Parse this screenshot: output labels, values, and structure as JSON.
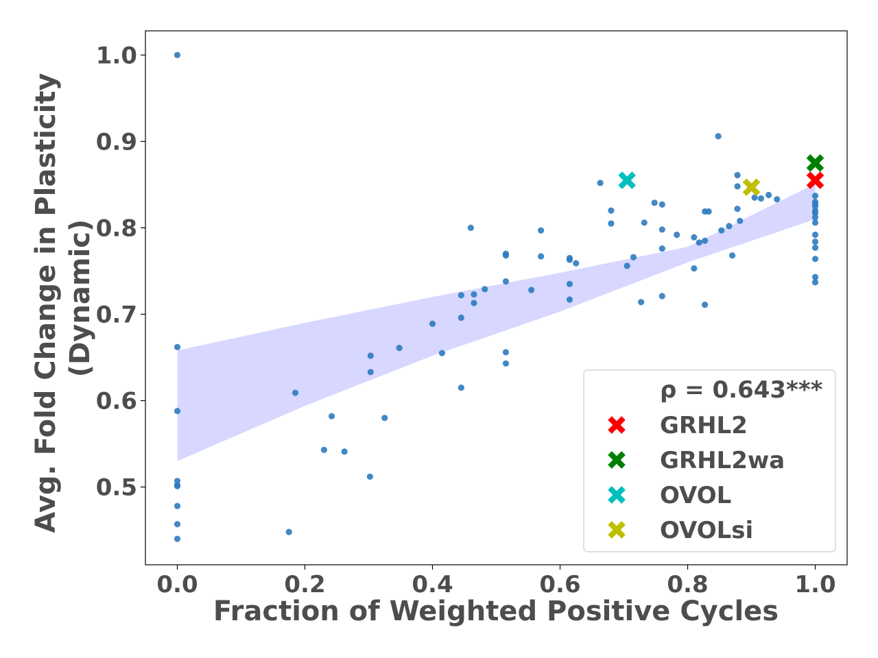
{
  "chart_data": {
    "type": "scatter",
    "xlabel": "Fraction of Weighted Positive Cycles",
    "ylabel_lines": [
      "Avg. Fold Change in Plasticity",
      "(Dynamic)"
    ],
    "xlim": [
      -0.05,
      1.05
    ],
    "ylim": [
      0.41,
      1.028
    ],
    "xticks": [
      0.0,
      0.2,
      0.4,
      0.6,
      0.8,
      1.0
    ],
    "yticks": [
      0.5,
      0.6,
      0.7,
      0.8,
      0.9,
      1.0
    ],
    "xtick_labels": [
      "0.0",
      "0.2",
      "0.4",
      "0.6",
      "0.8",
      "1.0"
    ],
    "ytick_labels": [
      "0.5",
      "0.6",
      "0.7",
      "0.8",
      "0.9",
      "1.0"
    ],
    "grid": false,
    "legend_position": "bottom-right",
    "point_color": "#2e7bbf",
    "band_color": "#c9c9ff",
    "regression_band": {
      "x": [
        0.0,
        0.2,
        0.4,
        0.6,
        0.8,
        1.0
      ],
      "lower": [
        0.53,
        0.594,
        0.652,
        0.703,
        0.76,
        0.81
      ],
      "upper": [
        0.658,
        0.69,
        0.72,
        0.748,
        0.778,
        0.851
      ]
    },
    "points": [
      [
        0.0,
        1.0
      ],
      [
        0.0,
        0.662
      ],
      [
        0.0,
        0.588
      ],
      [
        0.0,
        0.507
      ],
      [
        0.0,
        0.502
      ],
      [
        0.0,
        0.501
      ],
      [
        0.0,
        0.478
      ],
      [
        0.0,
        0.457
      ],
      [
        0.0,
        0.44
      ],
      [
        0.175,
        0.448
      ],
      [
        0.185,
        0.609
      ],
      [
        0.23,
        0.543
      ],
      [
        0.242,
        0.582
      ],
      [
        0.262,
        0.541
      ],
      [
        0.302,
        0.512
      ],
      [
        0.303,
        0.633
      ],
      [
        0.303,
        0.652
      ],
      [
        0.325,
        0.58
      ],
      [
        0.348,
        0.661
      ],
      [
        0.4,
        0.689
      ],
      [
        0.415,
        0.655
      ],
      [
        0.445,
        0.615
      ],
      [
        0.445,
        0.696
      ],
      [
        0.445,
        0.722
      ],
      [
        0.46,
        0.8
      ],
      [
        0.465,
        0.713
      ],
      [
        0.465,
        0.723
      ],
      [
        0.482,
        0.729
      ],
      [
        0.515,
        0.643
      ],
      [
        0.515,
        0.656
      ],
      [
        0.515,
        0.738
      ],
      [
        0.515,
        0.768
      ],
      [
        0.515,
        0.77
      ],
      [
        0.555,
        0.728
      ],
      [
        0.57,
        0.767
      ],
      [
        0.57,
        0.797
      ],
      [
        0.615,
        0.717
      ],
      [
        0.615,
        0.735
      ],
      [
        0.615,
        0.763
      ],
      [
        0.615,
        0.765
      ],
      [
        0.625,
        0.759
      ],
      [
        0.663,
        0.852
      ],
      [
        0.68,
        0.805
      ],
      [
        0.68,
        0.82
      ],
      [
        0.705,
        0.756
      ],
      [
        0.715,
        0.766
      ],
      [
        0.727,
        0.714
      ],
      [
        0.732,
        0.806
      ],
      [
        0.748,
        0.829
      ],
      [
        0.76,
        0.721
      ],
      [
        0.76,
        0.776
      ],
      [
        0.76,
        0.798
      ],
      [
        0.76,
        0.827
      ],
      [
        0.783,
        0.792
      ],
      [
        0.81,
        0.753
      ],
      [
        0.81,
        0.789
      ],
      [
        0.818,
        0.783
      ],
      [
        0.827,
        0.711
      ],
      [
        0.827,
        0.785
      ],
      [
        0.827,
        0.819
      ],
      [
        0.833,
        0.819
      ],
      [
        0.848,
        0.906
      ],
      [
        0.853,
        0.797
      ],
      [
        0.865,
        0.802
      ],
      [
        0.87,
        0.768
      ],
      [
        0.878,
        0.822
      ],
      [
        0.878,
        0.848
      ],
      [
        0.878,
        0.861
      ],
      [
        0.882,
        0.808
      ],
      [
        0.905,
        0.835
      ],
      [
        0.915,
        0.834
      ],
      [
        0.927,
        0.838
      ],
      [
        0.94,
        0.833
      ],
      [
        1.0,
        0.737
      ],
      [
        1.0,
        0.743
      ],
      [
        1.0,
        0.764
      ],
      [
        1.0,
        0.777
      ],
      [
        1.0,
        0.784
      ],
      [
        1.0,
        0.792
      ],
      [
        1.0,
        0.806
      ],
      [
        1.0,
        0.812
      ],
      [
        1.0,
        0.817
      ],
      [
        1.0,
        0.82
      ],
      [
        1.0,
        0.825
      ],
      [
        1.0,
        0.828
      ],
      [
        1.0,
        0.83
      ],
      [
        1.0,
        0.837
      ]
    ],
    "highlights": [
      {
        "name": "GRHL2",
        "x": 1.0,
        "y": 0.855,
        "color": "#ff0000"
      },
      {
        "name": "GRHL2wa",
        "x": 1.0,
        "y": 0.875,
        "color": "#008000"
      },
      {
        "name": "OVOL",
        "x": 0.705,
        "y": 0.855,
        "color": "#00bfbf"
      },
      {
        "name": "OVOLsi",
        "x": 0.9,
        "y": 0.847,
        "color": "#bfbf00"
      }
    ],
    "legend_title": "ρ = 0.643***"
  }
}
